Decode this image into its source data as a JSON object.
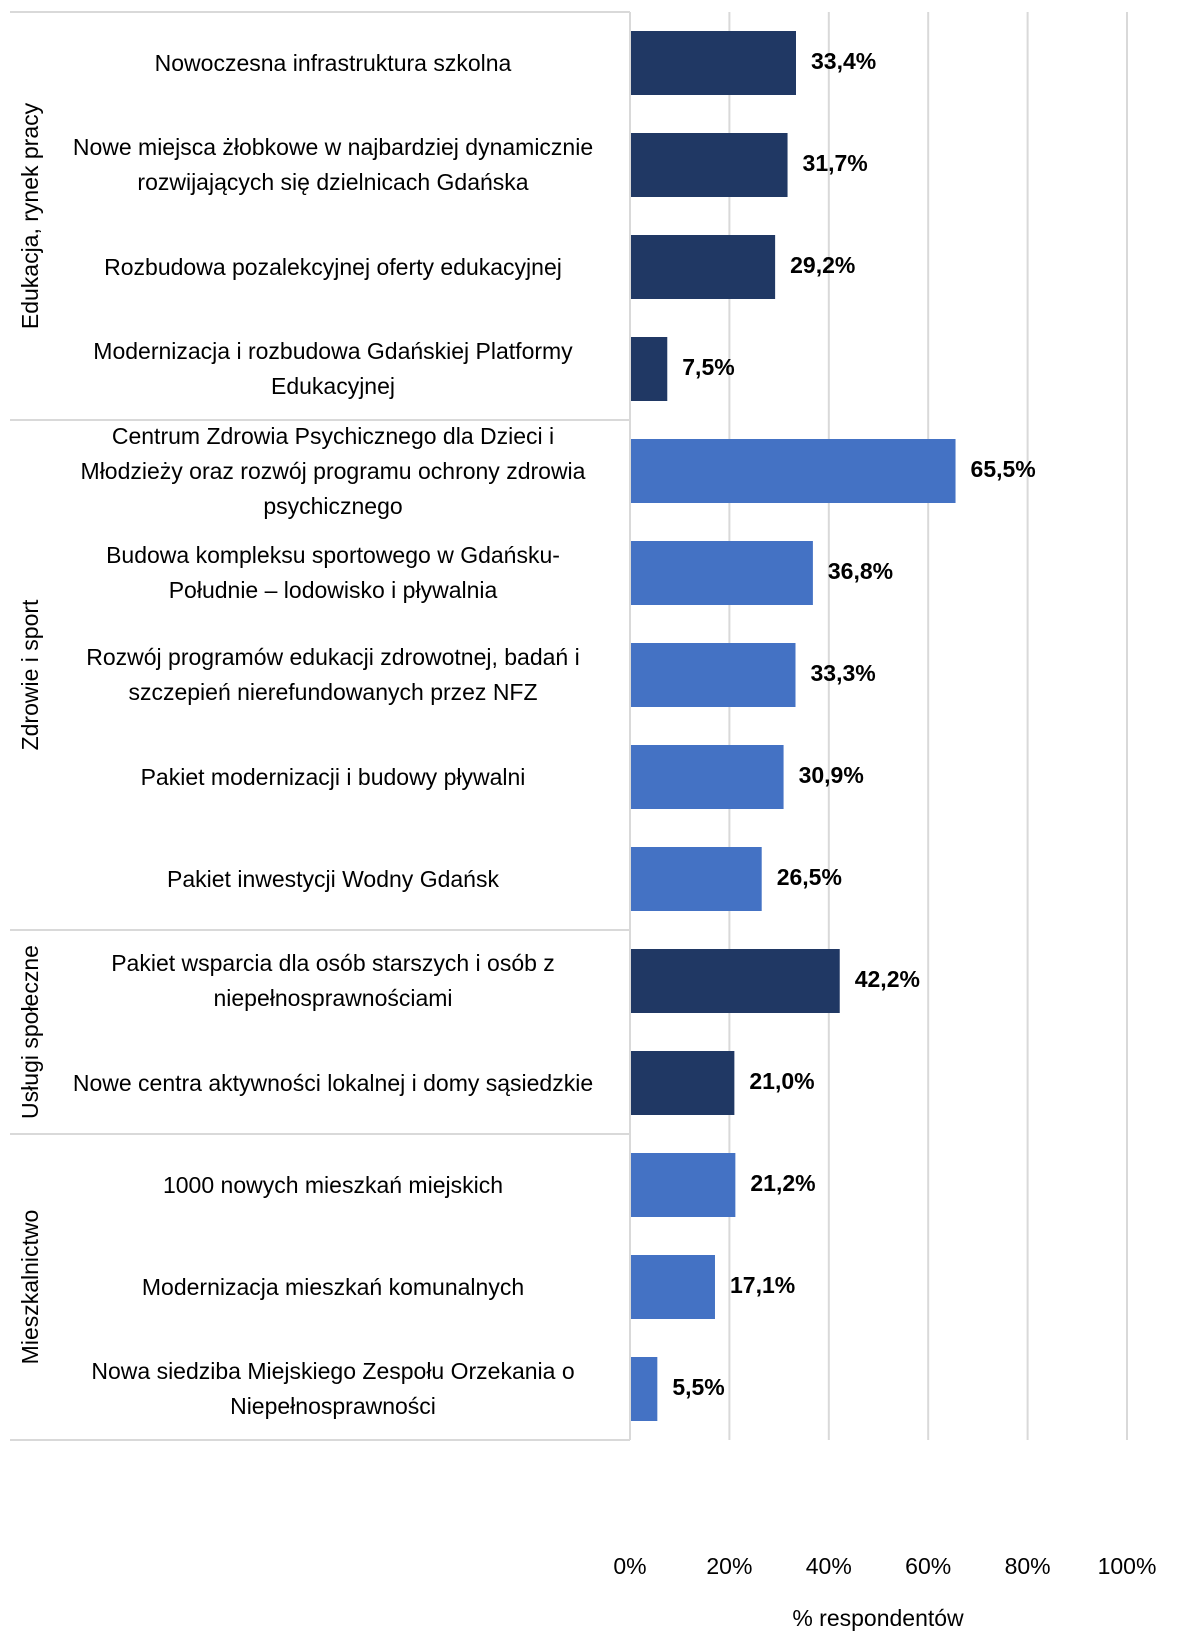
{
  "chart_data": {
    "type": "bar",
    "orientation": "horizontal",
    "x_label": "% respondentów",
    "xlim": [
      0,
      100
    ],
    "xticks": [
      {
        "value": 0,
        "label": "0%"
      },
      {
        "value": 20,
        "label": "20%"
      },
      {
        "value": 40,
        "label": "40%"
      },
      {
        "value": 60,
        "label": "60%"
      },
      {
        "value": 80,
        "label": "80%"
      },
      {
        "value": 100,
        "label": "100%"
      }
    ],
    "grid": true,
    "groups": [
      {
        "name": "Edukacja, rynek pracy",
        "color": "#203864",
        "categories": [
          "Nowoczesna infrastruktura szkolna",
          "Nowe miejsca żłobkowe w najbardziej dynamicznie rozwijających się dzielnicach Gdańska",
          "Rozbudowa pozalekcyjnej oferty edukacyjnej",
          "Modernizacja i rozbudowa Gdańskiej Platformy Edukacyjnej"
        ],
        "values": [
          33.4,
          31.7,
          29.2,
          7.5
        ],
        "value_labels": [
          "33,4%",
          "31,7%",
          "29,2%",
          "7,5%"
        ]
      },
      {
        "name": "Zdrowie i sport",
        "color": "#4472c4",
        "categories": [
          "Centrum Zdrowia Psychicznego dla Dzieci i Młodzieży oraz rozwój programu ochrony zdrowia psychicznego",
          "Budowa kompleksu sportowego w Gdańsku-Południe – lodowisko i pływalnia",
          "Rozwój programów edukacji zdrowotnej, badań i szczepień nierefundowanych przez NFZ",
          "Pakiet modernizacji i budowy pływalni",
          "Pakiet inwestycji Wodny Gdańsk"
        ],
        "values": [
          65.5,
          36.8,
          33.3,
          30.9,
          26.5
        ],
        "value_labels": [
          "65,5%",
          "36,8%",
          "33,3%",
          "30,9%",
          "26,5%"
        ]
      },
      {
        "name": "Usługi społeczne",
        "color": "#203864",
        "categories": [
          "Pakiet wsparcia dla osób starszych i osób z niepełnosprawnościami",
          "Nowe centra aktywności lokalnej i domy sąsiedzkie"
        ],
        "values": [
          42.2,
          21.0
        ],
        "value_labels": [
          "42,2%",
          "21,0%"
        ]
      },
      {
        "name": "Mieszkalnictwo",
        "color": "#4472c4",
        "categories": [
          "1000 nowych mieszkań miejskich",
          "Modernizacja mieszkań komunalnych",
          "Nowa siedziba Miejskiego Zespołu Orzekania o Niepełnosprawności"
        ],
        "values": [
          21.2,
          17.1,
          5.5
        ],
        "value_labels": [
          "21,2%",
          "17,1%",
          "5,5%"
        ]
      }
    ]
  }
}
